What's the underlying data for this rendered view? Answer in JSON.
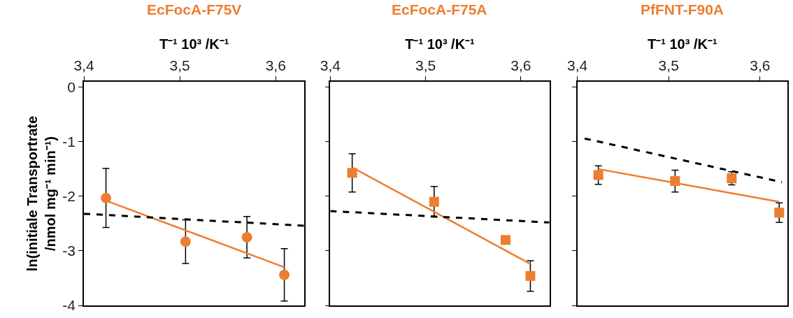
{
  "chart_data": [
    {
      "type": "scatter",
      "title": "EcFocA-F75V",
      "xlabel": "T⁻¹ 10³ /K⁻¹",
      "ylabel": "ln(initiale Transportrate\n/nmol mg⁻¹ min⁻¹)",
      "xlim": [
        3.4,
        3.63
      ],
      "xticks": [
        {
          "value": 3.4,
          "label": "3,4"
        },
        {
          "value": 3.5,
          "label": "3,5"
        },
        {
          "value": 3.6,
          "label": "3,6"
        }
      ],
      "ylim": [
        -4,
        0.1
      ],
      "yticks": [
        0,
        -1,
        -2,
        -3,
        -4
      ],
      "series": [
        {
          "marker": "circle",
          "color": "#ed7d31",
          "x": [
            3.423,
            3.506,
            3.57,
            3.609
          ],
          "values": [
            -2.03,
            -2.83,
            -2.75,
            -3.44
          ],
          "errors": [
            0.54,
            0.4,
            0.38,
            0.48
          ]
        },
        {
          "type": "line",
          "line_style": "solid",
          "marker": "none",
          "color": "#ed7d31",
          "x": [
            3.423,
            3.609
          ],
          "values": [
            -2.08,
            -3.3
          ]
        },
        {
          "type": "line",
          "line_style": "dashed",
          "marker": "none",
          "color": "#000000",
          "x": [
            3.4,
            3.63
          ],
          "values": [
            -2.32,
            -2.54
          ]
        }
      ]
    },
    {
      "type": "scatter",
      "title": "EcFocA-F75A",
      "xlabel": "T⁻¹ 10³ /K⁻¹",
      "xlim": [
        3.4,
        3.63
      ],
      "xticks": [
        {
          "value": 3.4,
          "label": "3,4"
        },
        {
          "value": 3.5,
          "label": "3,5"
        },
        {
          "value": 3.6,
          "label": "3,6"
        }
      ],
      "ylim": [
        -4,
        0.1
      ],
      "yticks": [
        0,
        -1,
        -2,
        -3,
        -4
      ],
      "tick_labels": "x",
      "series": [
        {
          "marker": "square",
          "color": "#ed7d31",
          "x": [
            3.423,
            3.509,
            3.584,
            3.61
          ],
          "values": [
            -1.57,
            -2.1,
            -2.8,
            -3.46
          ],
          "errors": [
            0.35,
            0.28,
            null,
            0.28
          ]
        },
        {
          "type": "line",
          "line_style": "solid",
          "marker": "none",
          "color": "#ed7d31",
          "x": [
            3.423,
            3.61
          ],
          "values": [
            -1.47,
            -3.24
          ]
        },
        {
          "type": "line",
          "line_style": "dashed",
          "marker": "none",
          "color": "#000000",
          "x": [
            3.4,
            3.63
          ],
          "values": [
            -2.27,
            -2.48
          ]
        }
      ]
    },
    {
      "type": "scatter",
      "title": "PfFNT-F90A",
      "xlabel": "T⁻¹ 10³ /K⁻¹",
      "xlim": [
        3.4,
        3.63
      ],
      "xticks": [
        {
          "value": 3.4,
          "label": "3,4"
        },
        {
          "value": 3.5,
          "label": "3,5"
        },
        {
          "value": 3.6,
          "label": "3,6"
        }
      ],
      "ylim": [
        -4,
        0.1
      ],
      "yticks": [
        0,
        -1,
        -2,
        -3,
        -4
      ],
      "tick_labels": "x",
      "series": [
        {
          "marker": "square",
          "color": "#ed7d31",
          "x": [
            3.423,
            3.507,
            3.569,
            3.621
          ],
          "values": [
            -1.61,
            -1.72,
            -1.67,
            -2.3
          ],
          "errors": [
            0.17,
            0.2,
            0.12,
            0.18
          ]
        },
        {
          "type": "line",
          "line_style": "solid",
          "marker": "none",
          "color": "#ed7d31",
          "x": [
            3.423,
            3.621
          ],
          "values": [
            -1.5,
            -2.1
          ]
        },
        {
          "type": "line",
          "line_style": "dashed",
          "marker": "none",
          "color": "#000000",
          "x": [
            3.408,
            3.624
          ],
          "values": [
            -0.94,
            -1.74
          ]
        }
      ]
    }
  ]
}
